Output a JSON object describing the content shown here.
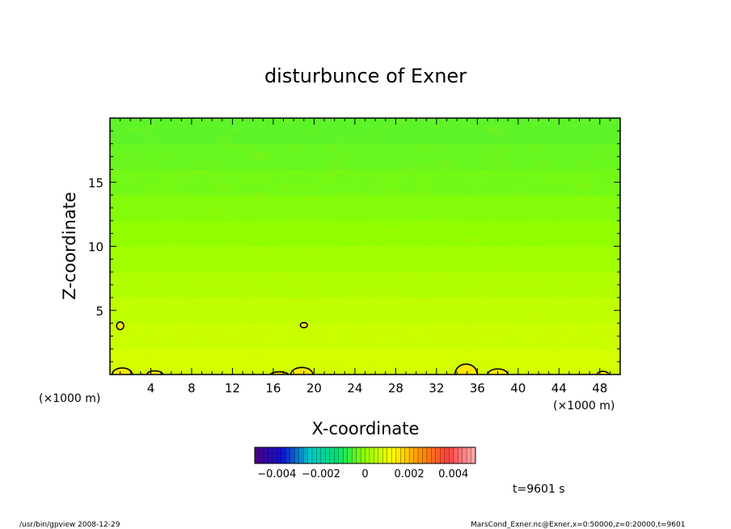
{
  "chart_data": {
    "type": "heatmap",
    "title": "disturbunce of Exner",
    "xlabel": "X-coordinate",
    "ylabel": "Z-coordinate",
    "x_unit_left": "(×1000 m)",
    "x_unit_right": "(×1000 m)",
    "xlim": [
      0,
      50
    ],
    "ylim": [
      0,
      20
    ],
    "x_ticks": [
      4,
      8,
      12,
      16,
      20,
      24,
      28,
      32,
      36,
      40,
      44,
      48
    ],
    "x_tick_labels": [
      "4",
      "8",
      "12",
      "16",
      "20",
      "24",
      "28",
      "32",
      "36",
      "40",
      "44",
      "48"
    ],
    "y_ticks": [
      5,
      10,
      15
    ],
    "y_tick_labels": [
      "5",
      "10",
      "15"
    ],
    "colorbar": {
      "range": [
        -0.005,
        0.005
      ],
      "ticks": [
        -0.004,
        -0.002,
        0,
        0.002,
        0.004
      ],
      "tick_labels": [
        "−0.004",
        "−0.002",
        "0",
        "0.002",
        "0.004"
      ],
      "colors": [
        "#4b0082",
        "#1010d0",
        "#00c8c8",
        "#00e070",
        "#90ff00",
        "#ffff00",
        "#ff9000",
        "#ff4040",
        "#ffb0b0"
      ]
    },
    "field_rows": [
      {
        "z": 0.0,
        "value": 0.0008
      },
      {
        "z": 2.0,
        "value": 0.0007
      },
      {
        "z": 4.0,
        "value": 0.0006
      },
      {
        "z": 6.0,
        "value": 0.00045
      },
      {
        "z": 8.0,
        "value": 0.0003
      },
      {
        "z": 10.0,
        "value": 0.0001
      },
      {
        "z": 12.0,
        "value": -5e-05
      },
      {
        "z": 14.0,
        "value": -0.0002
      },
      {
        "z": 16.0,
        "value": -0.0003
      },
      {
        "z": 18.0,
        "value": -0.0004
      },
      {
        "z": 20.0,
        "value": -0.0005
      }
    ],
    "contours": [
      {
        "shape": "ellipse",
        "x": 1.0,
        "z": 3.8,
        "rx": 0.35,
        "rz": 0.3
      },
      {
        "shape": "ellipse",
        "x": 19.0,
        "z": 3.85,
        "rx": 0.35,
        "rz": 0.2
      },
      {
        "shape": "bump",
        "x": 1.2,
        "w": 1.0,
        "h": 0.7
      },
      {
        "shape": "bump",
        "x": 4.4,
        "w": 0.8,
        "h": 0.4
      },
      {
        "shape": "bump",
        "x": 16.6,
        "w": 0.9,
        "h": 0.3
      },
      {
        "shape": "bump",
        "x": 18.8,
        "w": 1.1,
        "h": 0.75
      },
      {
        "shape": "bump",
        "x": 34.9,
        "w": 1.1,
        "h": 1.1
      },
      {
        "shape": "bump",
        "x": 38.0,
        "w": 1.0,
        "h": 0.6
      },
      {
        "shape": "bump",
        "x": 48.3,
        "w": 0.6,
        "h": 0.35
      }
    ],
    "time_label": "t=9601 s"
  },
  "footer": {
    "left": "/usr/bin/gpview   2008-12-29",
    "right": "MarsCond_Exner.nc@Exner,x=0:50000,z=0:20000,t=9601"
  }
}
